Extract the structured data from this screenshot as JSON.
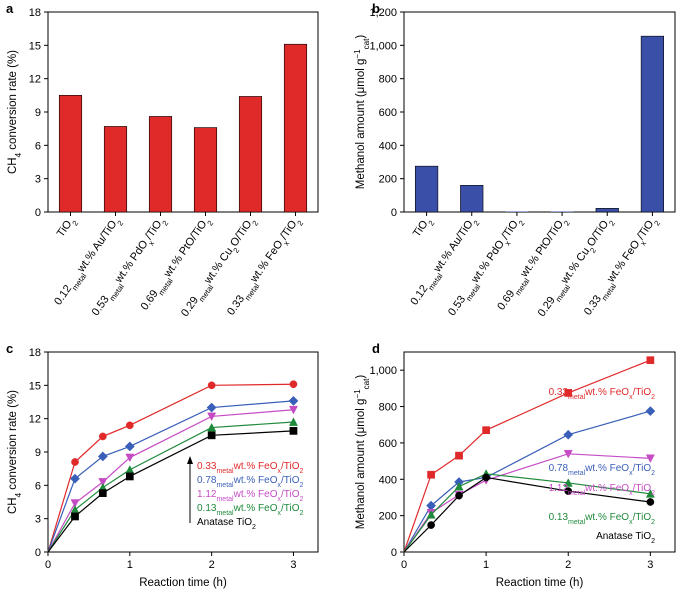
{
  "chart_data": [
    {
      "panel": "a",
      "type": "bar",
      "ylabel": "CH4 conversion rate (%)",
      "ylim": [
        0,
        18
      ],
      "yticks": [
        0,
        3,
        6,
        9,
        12,
        15,
        18
      ],
      "bar_color": "#e02a2a",
      "categories": [
        "TiO2",
        "0.12metalwt.% Au/TiO2",
        "0.53metalwt.% PdOx/TiO2",
        "0.69metalwt.% PtO/TiO2",
        "0.29metalwt.% Cu2O/TiO2",
        "0.33metalwt.% FeOx/TiO2"
      ],
      "values": [
        10.5,
        7.7,
        8.6,
        7.6,
        10.4,
        15.1
      ]
    },
    {
      "panel": "b",
      "type": "bar",
      "ylabel": "Methanol amount (μmol g−1cat)",
      "ylim": [
        0,
        1200
      ],
      "yticks": [
        "0",
        "200",
        "400",
        "600",
        "800",
        "1,000",
        "1,200"
      ],
      "bar_color": "#3a50a8",
      "categories": [
        "TiO2",
        "0.12metalwt.% Au/TiO2",
        "0.53metalwt.% PdOx/TiO2",
        "0.69metalwt.% PtO/TiO2",
        "0.29metalwt.% Cu2O/TiO2",
        "0.33metalwt.% FeOx/TiO2"
      ],
      "values": [
        275,
        160,
        0,
        0,
        22,
        1055
      ]
    },
    {
      "panel": "c",
      "type": "line",
      "xlabel": "Reaction time (h)",
      "ylabel": "CH4 conversion rate (%)",
      "xlim": [
        0,
        3.3
      ],
      "ylim": [
        0,
        18
      ],
      "xticks": [
        0,
        1,
        2,
        3
      ],
      "yticks": [
        0,
        3,
        6,
        9,
        12,
        15,
        18
      ],
      "x": [
        0,
        0.33,
        0.67,
        1,
        2,
        3
      ],
      "series": [
        {
          "name": "0.33metalwt.% FeOx/TiO2",
          "color": "#e02a2a",
          "marker": "circle",
          "values": [
            0,
            8.1,
            10.4,
            11.4,
            15.0,
            15.1
          ]
        },
        {
          "name": "0.78metalwt.% FeOx/TiO2",
          "color": "#3a5fb8",
          "marker": "diamond",
          "values": [
            0,
            6.6,
            8.6,
            9.5,
            13.0,
            13.6
          ]
        },
        {
          "name": "1.12metalwt.% FeOx/TiO2",
          "color": "#c64cc6",
          "marker": "triangle-down",
          "values": [
            0,
            4.4,
            6.3,
            8.5,
            12.2,
            12.8
          ]
        },
        {
          "name": "0.13metalwt.% FeOx/TiO2",
          "color": "#1f8a3c",
          "marker": "triangle-up",
          "values": [
            0,
            3.8,
            5.8,
            7.4,
            11.2,
            11.7
          ]
        },
        {
          "name": "Anatase TiO2",
          "color": "#000000",
          "marker": "square",
          "values": [
            0,
            3.2,
            5.3,
            6.8,
            10.5,
            10.9
          ]
        }
      ]
    },
    {
      "panel": "d",
      "type": "line",
      "xlabel": "Reaction time (h)",
      "ylabel": "Methanol amount (μmol g−1cat)",
      "xlim": [
        0,
        3.3
      ],
      "ylim": [
        0,
        1100
      ],
      "xticks": [
        0,
        1,
        2,
        3
      ],
      "yticks": [
        "0",
        "200",
        "400",
        "600",
        "800",
        "1,000"
      ],
      "x": [
        0,
        0.33,
        0.67,
        1,
        2,
        3
      ],
      "series": [
        {
          "name": "0.33metalwt.% FeOx/TiO2",
          "color": "#e02a2a",
          "marker": "square",
          "values": [
            0,
            425,
            530,
            670,
            875,
            1055
          ]
        },
        {
          "name": "0.78metalwt.% FeOx/TiO2",
          "color": "#3a5fb8",
          "marker": "diamond",
          "values": [
            0,
            255,
            385,
            410,
            645,
            775
          ]
        },
        {
          "name": "1.12metalwt.% FeOx/TiO2",
          "color": "#c64cc6",
          "marker": "triangle-down",
          "values": [
            0,
            215,
            315,
            395,
            540,
            515
          ]
        },
        {
          "name": "0.13metalwt.% FeOx/TiO2",
          "color": "#1f8a3c",
          "marker": "triangle-up",
          "values": [
            0,
            205,
            360,
            430,
            380,
            320
          ]
        },
        {
          "name": "Anatase TiO2",
          "color": "#000000",
          "marker": "circle",
          "values": [
            0,
            148,
            310,
            410,
            335,
            275
          ]
        }
      ]
    }
  ]
}
